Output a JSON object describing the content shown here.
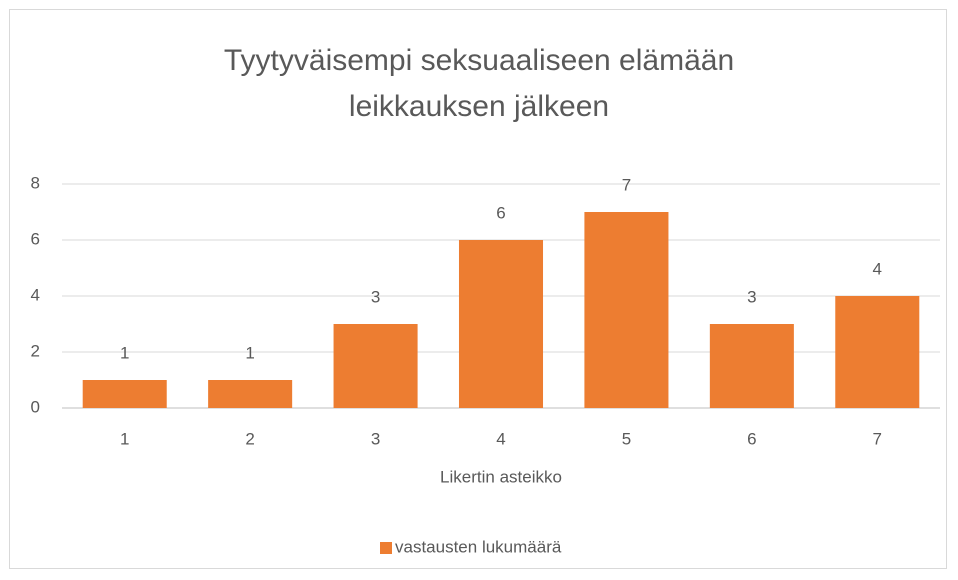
{
  "chart_data": {
    "type": "bar",
    "title": "Tyytyväisempi seksuaaliseen elämään leikkauksen jälkeen",
    "x_label": "Likertin asteikko",
    "categories": [
      "1",
      "2",
      "3",
      "4",
      "5",
      "6",
      "7"
    ],
    "series": [
      {
        "name": "vastausten lukumäärä",
        "color": "#ed7d31",
        "values": [
          1,
          1,
          3,
          6,
          7,
          3,
          4
        ]
      }
    ],
    "ylim": [
      0,
      8
    ],
    "yticks": [
      0,
      2,
      4,
      6,
      8
    ],
    "grid": true,
    "legend": "bottom"
  }
}
